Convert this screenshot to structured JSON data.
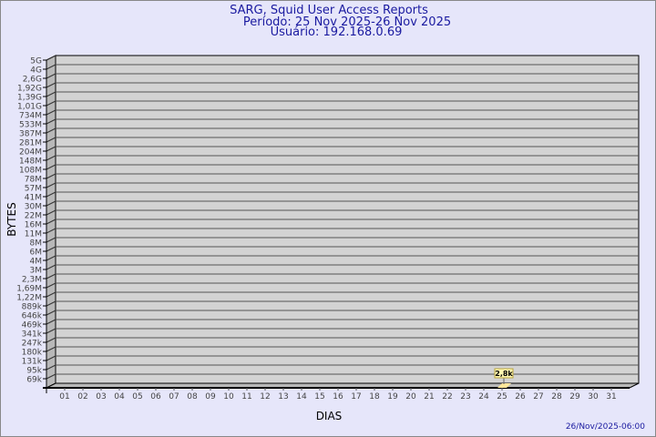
{
  "title_lines": [
    "SARG, Squid User Access Reports",
    "Período: 25 Nov 2025-26 Nov 2025",
    "Usuário: 192.168.0.69"
  ],
  "footer_timestamp": "26/Nov/2025-06:00",
  "colors": {
    "background": "#e6e6fa",
    "plot": "#d3d3d3",
    "title": "#1a1aa0",
    "bar": "#ffe79a"
  },
  "chart_data": {
    "type": "bar",
    "xlabel": "DIAS",
    "ylabel": "BYTES",
    "y_scale": "log",
    "y_tick_labels": [
      "5G",
      "4G",
      "2,6G",
      "1,92G",
      "1,39G",
      "1,01G",
      "734M",
      "533M",
      "387M",
      "281M",
      "204M",
      "148M",
      "108M",
      "78M",
      "57M",
      "41M",
      "30M",
      "22M",
      "16M",
      "11M",
      "8M",
      "6M",
      "4M",
      "3M",
      "2,3M",
      "1,69M",
      "1,22M",
      "889k",
      "646k",
      "469k",
      "341k",
      "247k",
      "180k",
      "131k",
      "95k",
      "69k"
    ],
    "categories": [
      "01",
      "02",
      "03",
      "04",
      "05",
      "06",
      "07",
      "08",
      "09",
      "10",
      "11",
      "12",
      "13",
      "14",
      "15",
      "16",
      "17",
      "18",
      "19",
      "20",
      "21",
      "22",
      "23",
      "24",
      "25",
      "26",
      "27",
      "28",
      "29",
      "30",
      "31"
    ],
    "bars": [
      {
        "day": "25",
        "value": 2800,
        "label": "2,8k"
      }
    ],
    "grid": true
  }
}
